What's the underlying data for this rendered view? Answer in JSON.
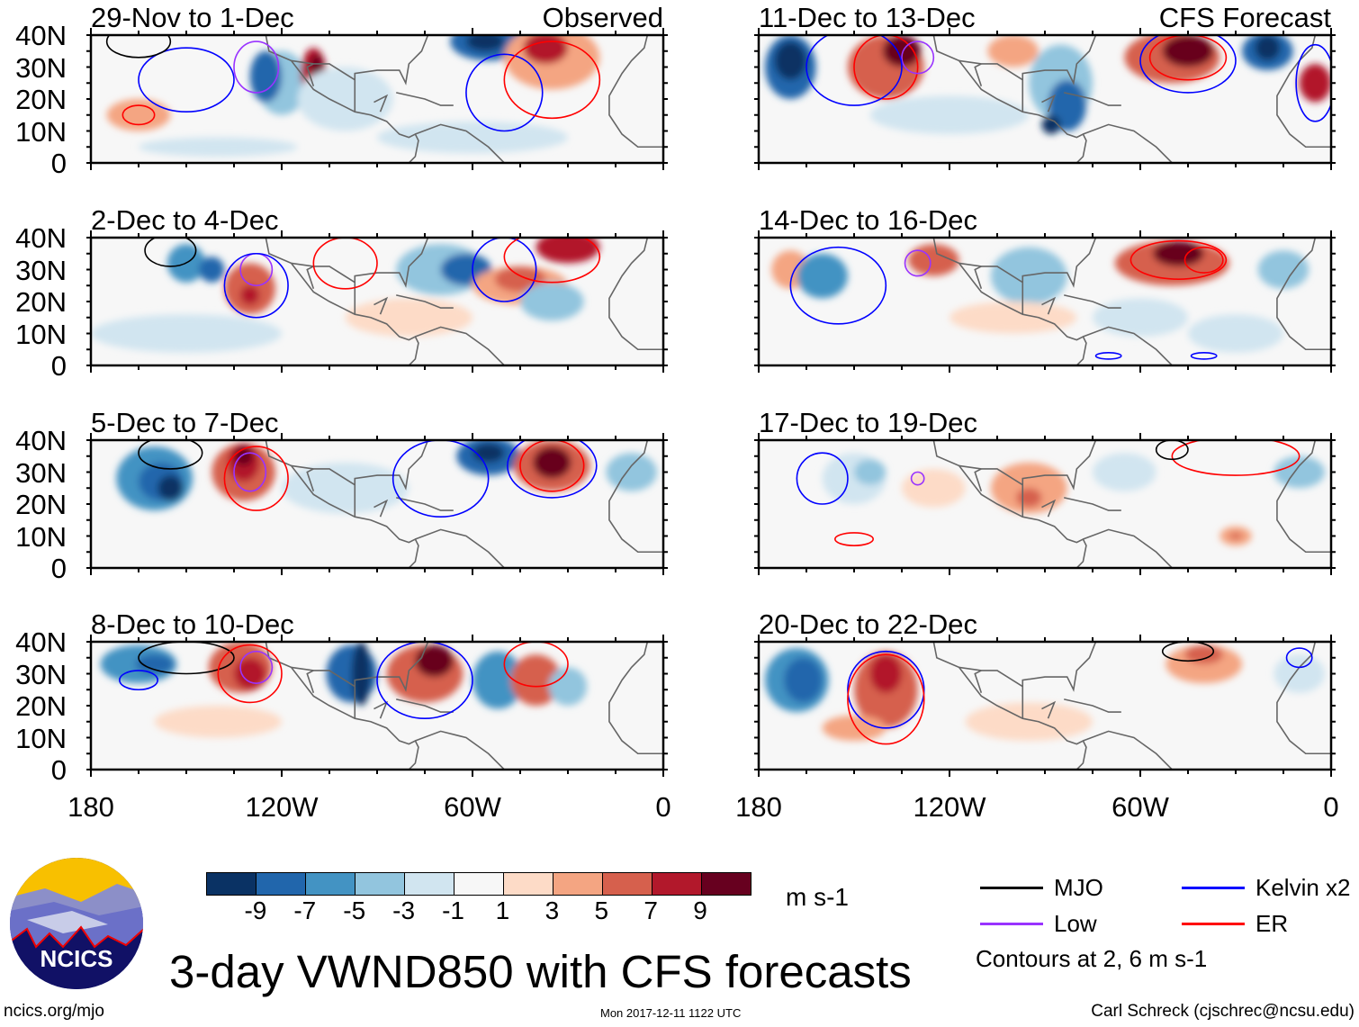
{
  "title": "3-day VWND850 with CFS forecasts",
  "logo_text": "NCICS",
  "site_url": "ncics.org/mjo",
  "timestamp": "Mon 2017-12-11 1122 UTC",
  "author": "Carl Schreck (cjschrec@ncsu.edu)",
  "observed_label": "Observed",
  "forecast_label": "CFS Forecast",
  "panels": [
    {
      "title": "29-Nov to 1-Dec"
    },
    {
      "title": "2-Dec to 4-Dec"
    },
    {
      "title": "5-Dec to 7-Dec"
    },
    {
      "title": "8-Dec to 10-Dec"
    },
    {
      "title": "11-Dec to 13-Dec"
    },
    {
      "title": "14-Dec to 16-Dec"
    },
    {
      "title": "17-Dec to 19-Dec"
    },
    {
      "title": "20-Dec to 22-Dec"
    }
  ],
  "y_ticks": [
    "40N",
    "30N",
    "20N",
    "10N",
    "0"
  ],
  "x_ticks": [
    "180",
    "120W",
    "60W",
    "0"
  ],
  "colorbar": {
    "units": "m s-1",
    "labels": [
      "-9",
      "-7",
      "-5",
      "-3",
      "-1",
      "1",
      "3",
      "5",
      "7",
      "9"
    ],
    "colors": [
      "#0a3264",
      "#2166ac",
      "#4393c3",
      "#92c5de",
      "#d1e5f0",
      "#f7f7f7",
      "#fddbc7",
      "#f4a582",
      "#d6604d",
      "#b2182b",
      "#67001f"
    ]
  },
  "legend": {
    "items": [
      {
        "label": "MJO",
        "color": "#000000"
      },
      {
        "label": "Kelvin x2",
        "color": "#0000ff"
      },
      {
        "label": "Low",
        "color": "#9933ff"
      },
      {
        "label": "ER",
        "color": "#ff0000"
      }
    ],
    "note": "Contours at 2, 6 m s-1"
  }
}
